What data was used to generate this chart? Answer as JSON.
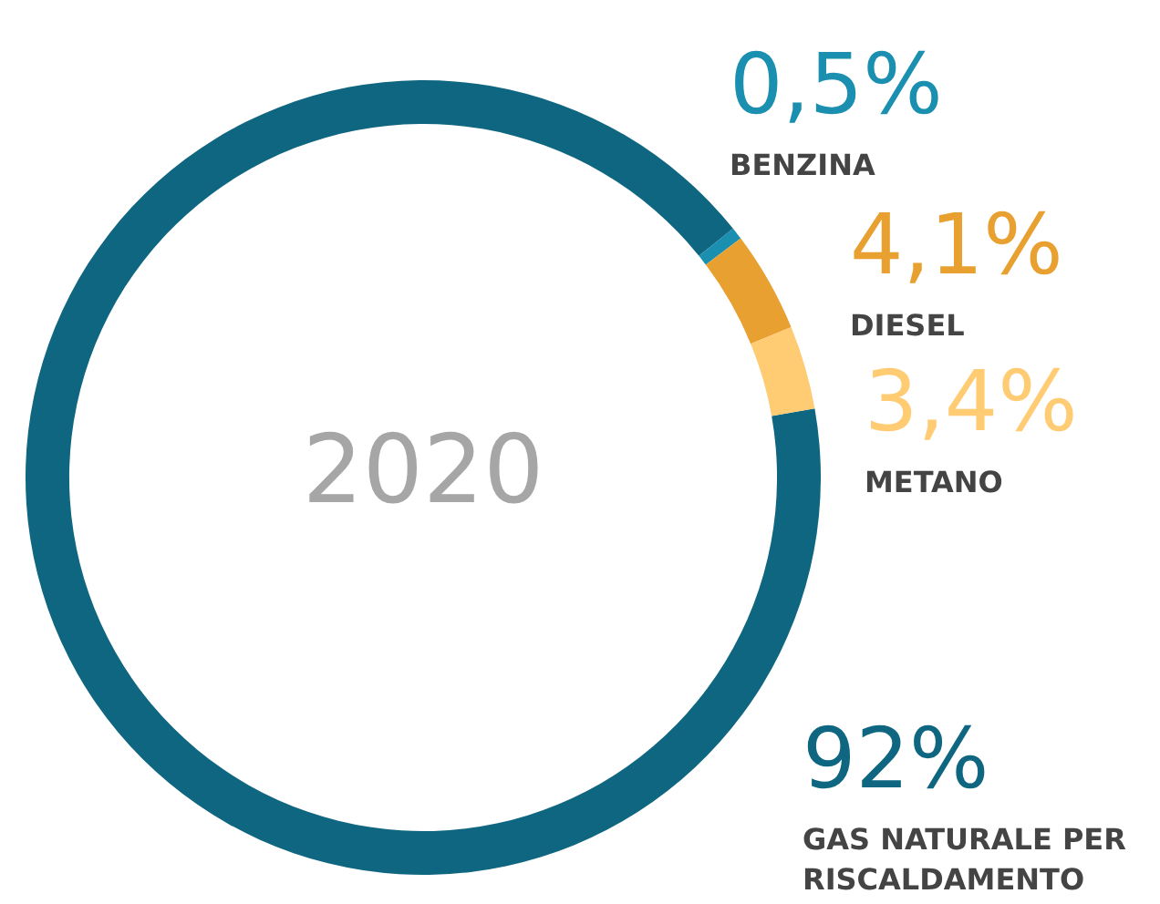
{
  "chart_data": {
    "type": "donut",
    "title": "2020",
    "categories": [
      "GAS NATURALE PER RISCALDAMENTO",
      "BENZINA",
      "DIESEL",
      "METANO"
    ],
    "values": [
      92,
      0.5,
      4.1,
      3.4
    ],
    "colors": [
      "#0f6680",
      "#1a8fb0",
      "#e8a030",
      "#ffcb73"
    ],
    "value_labels": [
      "92%",
      "0,5%",
      "4,1%",
      "3,4%"
    ],
    "legend": false
  }
}
